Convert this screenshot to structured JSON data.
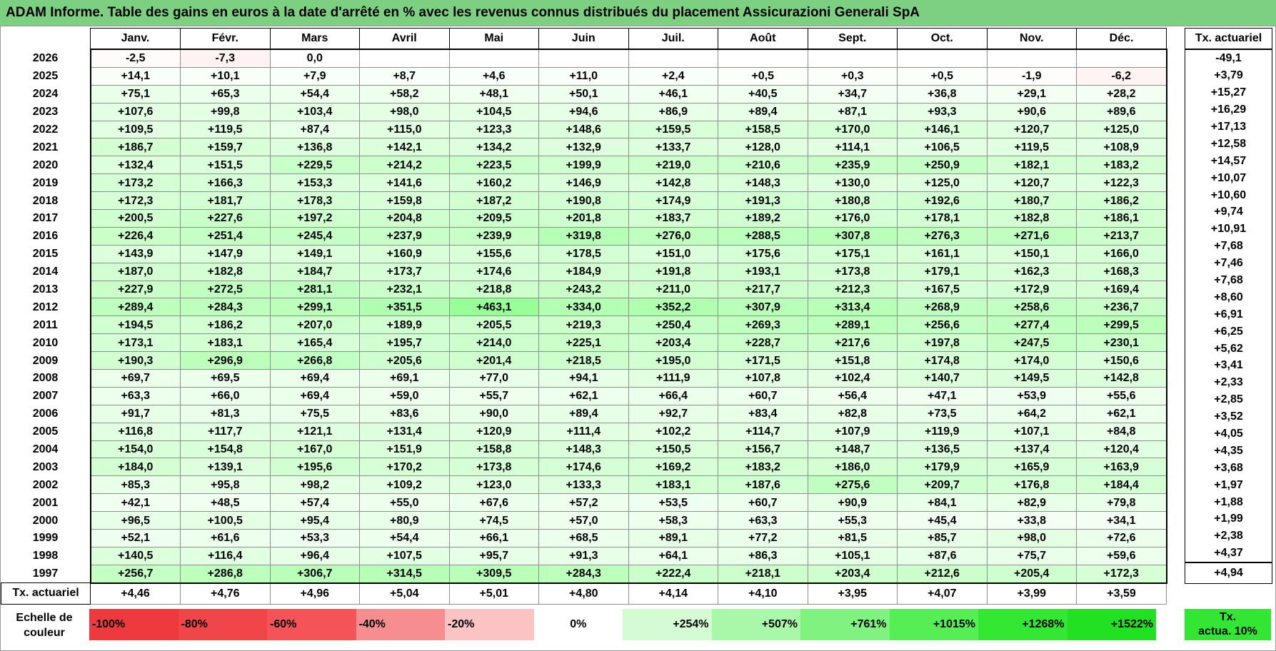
{
  "title": "ADAM Informe. Table des gains en euros à la date d'arrêté en % avec les revenus connus distribués du placement Assicurazioni Generali SpA",
  "months": [
    "Janv.",
    "Févr.",
    "Mars",
    "Avril",
    "Mai",
    "Juin",
    "Juil.",
    "Août",
    "Sept.",
    "Oct.",
    "Nov.",
    "Déc."
  ],
  "side_header": "Tx. actuariel",
  "rows": [
    {
      "year": "2026",
      "cells": [
        "-2,5",
        "-7,3",
        "0,0",
        "",
        "",
        "",
        "",
        "",
        "",
        "",
        "",
        ""
      ],
      "tx": "-49,1"
    },
    {
      "year": "2025",
      "cells": [
        "+14,1",
        "+10,1",
        "+7,9",
        "+8,7",
        "+4,6",
        "+11,0",
        "+2,4",
        "+0,5",
        "+0,3",
        "+0,5",
        "-1,9",
        "-6,2"
      ],
      "tx": "+3,79"
    },
    {
      "year": "2024",
      "cells": [
        "+75,1",
        "+65,3",
        "+54,4",
        "+58,2",
        "+48,1",
        "+50,1",
        "+46,1",
        "+40,5",
        "+34,7",
        "+36,8",
        "+29,1",
        "+28,2"
      ],
      "tx": "+15,27"
    },
    {
      "year": "2023",
      "cells": [
        "+107,6",
        "+99,8",
        "+103,4",
        "+98,0",
        "+104,5",
        "+94,6",
        "+86,9",
        "+89,4",
        "+87,1",
        "+93,3",
        "+90,6",
        "+89,6"
      ],
      "tx": "+16,29"
    },
    {
      "year": "2022",
      "cells": [
        "+109,5",
        "+119,5",
        "+87,4",
        "+115,0",
        "+123,3",
        "+148,6",
        "+159,5",
        "+158,5",
        "+170,0",
        "+146,1",
        "+120,7",
        "+125,0"
      ],
      "tx": "+17,13"
    },
    {
      "year": "2021",
      "cells": [
        "+186,7",
        "+159,7",
        "+136,8",
        "+142,1",
        "+134,2",
        "+132,9",
        "+133,7",
        "+128,0",
        "+114,1",
        "+106,5",
        "+119,5",
        "+108,9"
      ],
      "tx": "+12,58"
    },
    {
      "year": "2020",
      "cells": [
        "+132,4",
        "+151,5",
        "+229,5",
        "+214,2",
        "+223,5",
        "+199,9",
        "+219,0",
        "+210,6",
        "+235,9",
        "+250,9",
        "+182,1",
        "+183,2"
      ],
      "tx": "+14,57"
    },
    {
      "year": "2019",
      "cells": [
        "+173,2",
        "+166,3",
        "+153,3",
        "+141,6",
        "+160,2",
        "+146,9",
        "+142,8",
        "+148,3",
        "+130,0",
        "+125,0",
        "+120,7",
        "+122,3"
      ],
      "tx": "+10,07"
    },
    {
      "year": "2018",
      "cells": [
        "+172,3",
        "+181,7",
        "+178,3",
        "+159,8",
        "+187,2",
        "+190,8",
        "+174,9",
        "+191,3",
        "+180,8",
        "+192,6",
        "+180,7",
        "+186,2"
      ],
      "tx": "+10,60"
    },
    {
      "year": "2017",
      "cells": [
        "+200,5",
        "+227,6",
        "+197,2",
        "+204,8",
        "+209,5",
        "+201,8",
        "+183,7",
        "+189,2",
        "+176,0",
        "+178,1",
        "+182,8",
        "+186,1"
      ],
      "tx": "+9,74"
    },
    {
      "year": "2016",
      "cells": [
        "+226,4",
        "+251,4",
        "+245,4",
        "+237,9",
        "+239,9",
        "+319,8",
        "+276,0",
        "+288,5",
        "+307,8",
        "+276,3",
        "+271,6",
        "+213,7"
      ],
      "tx": "+10,91"
    },
    {
      "year": "2015",
      "cells": [
        "+143,9",
        "+147,9",
        "+149,1",
        "+160,9",
        "+155,6",
        "+178,5",
        "+151,0",
        "+175,6",
        "+175,1",
        "+161,1",
        "+150,1",
        "+166,0"
      ],
      "tx": "+7,68"
    },
    {
      "year": "2014",
      "cells": [
        "+187,0",
        "+182,8",
        "+184,7",
        "+173,7",
        "+174,6",
        "+184,9",
        "+191,8",
        "+193,1",
        "+173,8",
        "+179,1",
        "+162,3",
        "+168,3"
      ],
      "tx": "+7,46"
    },
    {
      "year": "2013",
      "cells": [
        "+227,9",
        "+272,5",
        "+281,1",
        "+232,1",
        "+218,8",
        "+243,2",
        "+211,0",
        "+217,7",
        "+212,3",
        "+167,5",
        "+172,9",
        "+169,4"
      ],
      "tx": "+7,68"
    },
    {
      "year": "2012",
      "cells": [
        "+289,4",
        "+284,3",
        "+299,1",
        "+351,5",
        "+463,1",
        "+334,0",
        "+352,2",
        "+307,9",
        "+313,4",
        "+268,9",
        "+258,6",
        "+236,7"
      ],
      "tx": "+8,60"
    },
    {
      "year": "2011",
      "cells": [
        "+194,5",
        "+186,2",
        "+207,0",
        "+189,9",
        "+205,5",
        "+219,3",
        "+250,4",
        "+269,3",
        "+289,1",
        "+256,6",
        "+277,4",
        "+299,5"
      ],
      "tx": "+6,91"
    },
    {
      "year": "2010",
      "cells": [
        "+173,1",
        "+183,1",
        "+165,4",
        "+195,7",
        "+214,0",
        "+225,1",
        "+203,4",
        "+228,7",
        "+217,6",
        "+197,8",
        "+247,5",
        "+230,1"
      ],
      "tx": "+6,25"
    },
    {
      "year": "2009",
      "cells": [
        "+190,3",
        "+296,9",
        "+266,8",
        "+205,6",
        "+201,4",
        "+218,5",
        "+195,0",
        "+171,5",
        "+151,8",
        "+174,8",
        "+174,0",
        "+150,6"
      ],
      "tx": "+5,62"
    },
    {
      "year": "2008",
      "cells": [
        "+69,7",
        "+69,5",
        "+69,4",
        "+69,1",
        "+77,0",
        "+94,1",
        "+111,9",
        "+107,8",
        "+102,4",
        "+140,7",
        "+149,5",
        "+142,8"
      ],
      "tx": "+3,41"
    },
    {
      "year": "2007",
      "cells": [
        "+63,3",
        "+66,0",
        "+69,4",
        "+59,0",
        "+55,7",
        "+62,1",
        "+66,4",
        "+60,7",
        "+56,4",
        "+47,1",
        "+53,9",
        "+55,6"
      ],
      "tx": "+2,33"
    },
    {
      "year": "2006",
      "cells": [
        "+91,7",
        "+81,3",
        "+75,5",
        "+83,6",
        "+90,0",
        "+89,4",
        "+92,7",
        "+83,4",
        "+82,8",
        "+73,5",
        "+64,2",
        "+62,1"
      ],
      "tx": "+2,85"
    },
    {
      "year": "2005",
      "cells": [
        "+116,8",
        "+117,7",
        "+121,1",
        "+131,4",
        "+120,9",
        "+111,4",
        "+102,2",
        "+114,7",
        "+107,9",
        "+119,9",
        "+107,1",
        "+84,8"
      ],
      "tx": "+3,52"
    },
    {
      "year": "2004",
      "cells": [
        "+154,0",
        "+154,8",
        "+167,0",
        "+151,9",
        "+158,8",
        "+148,3",
        "+150,5",
        "+156,7",
        "+148,7",
        "+136,5",
        "+137,4",
        "+120,4"
      ],
      "tx": "+4,05"
    },
    {
      "year": "2003",
      "cells": [
        "+184,0",
        "+139,1",
        "+195,6",
        "+170,2",
        "+173,8",
        "+174,6",
        "+169,2",
        "+183,2",
        "+186,0",
        "+179,9",
        "+165,9",
        "+163,9"
      ],
      "tx": "+4,35"
    },
    {
      "year": "2002",
      "cells": [
        "+85,3",
        "+95,8",
        "+98,2",
        "+109,2",
        "+123,0",
        "+133,3",
        "+183,1",
        "+187,6",
        "+275,6",
        "+209,7",
        "+176,8",
        "+184,4"
      ],
      "tx": "+3,68"
    },
    {
      "year": "2001",
      "cells": [
        "+42,1",
        "+48,5",
        "+57,4",
        "+55,0",
        "+67,6",
        "+57,2",
        "+53,5",
        "+60,7",
        "+90,9",
        "+84,1",
        "+82,9",
        "+79,8"
      ],
      "tx": "+1,97"
    },
    {
      "year": "2000",
      "cells": [
        "+96,5",
        "+100,5",
        "+95,4",
        "+80,9",
        "+74,5",
        "+57,0",
        "+58,3",
        "+63,3",
        "+55,3",
        "+45,4",
        "+33,8",
        "+34,1"
      ],
      "tx": "+1,88"
    },
    {
      "year": "1999",
      "cells": [
        "+52,1",
        "+61,6",
        "+53,3",
        "+54,4",
        "+66,1",
        "+68,5",
        "+89,1",
        "+77,2",
        "+81,5",
        "+85,7",
        "+98,0",
        "+72,6"
      ],
      "tx": "+1,99"
    },
    {
      "year": "1998",
      "cells": [
        "+140,5",
        "+116,4",
        "+96,4",
        "+107,5",
        "+95,7",
        "+91,3",
        "+64,1",
        "+86,3",
        "+105,1",
        "+87,6",
        "+75,7",
        "+59,6"
      ],
      "tx": "+2,38"
    },
    {
      "year": "1997",
      "cells": [
        "+256,7",
        "+286,8",
        "+306,7",
        "+314,5",
        "+309,5",
        "+284,3",
        "+222,4",
        "+218,1",
        "+203,4",
        "+212,6",
        "+205,4",
        "+172,3"
      ],
      "tx": "+4,37"
    }
  ],
  "footer": {
    "label": "Tx. actuariel",
    "values": [
      "+4,46",
      "+4,76",
      "+4,96",
      "+5,04",
      "+5,01",
      "+4,80",
      "+4,14",
      "+4,10",
      "+3,95",
      "+4,07",
      "+3,99",
      "+3,59"
    ],
    "tx": "+4,94"
  },
  "scale": {
    "label_line1": "Echelle de",
    "label_line2": "couleur",
    "stops": [
      {
        "label": "-100%",
        "color": "#ee3a3f",
        "kind": "neg"
      },
      {
        "label": "-80%",
        "color": "#f04549",
        "kind": "neg"
      },
      {
        "label": "-60%",
        "color": "#f45358",
        "kind": "neg"
      },
      {
        "label": "-40%",
        "color": "#f68e91",
        "kind": "neg"
      },
      {
        "label": "-20%",
        "color": "#fbc3c4",
        "kind": "neg"
      },
      {
        "label": "0%",
        "color": "#ffffff",
        "kind": "mid"
      },
      {
        "label": "+254%",
        "color": "#d4fbd4",
        "kind": "pos"
      },
      {
        "label": "+507%",
        "color": "#a9f7a9",
        "kind": "pos"
      },
      {
        "label": "+761%",
        "color": "#7ff27f",
        "kind": "pos"
      },
      {
        "label": "+1015%",
        "color": "#55ee55",
        "kind": "pos"
      },
      {
        "label": "+1268%",
        "color": "#33e733",
        "kind": "pos"
      },
      {
        "label": "+1522%",
        "color": "#22e022",
        "kind": "pos"
      }
    ],
    "tx_line1": "Tx.",
    "tx_line2": "actua. 10%",
    "tx_color": "#33e633"
  }
}
